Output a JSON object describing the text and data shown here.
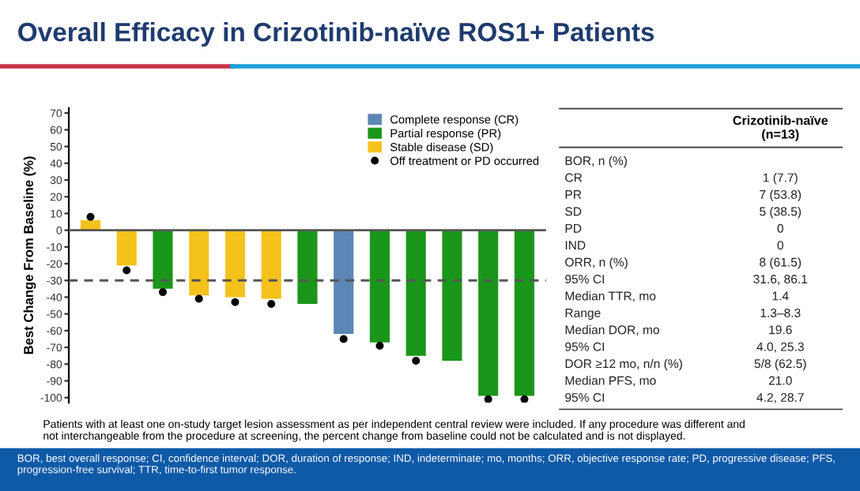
{
  "chart_data": [
    {
      "type": "bar",
      "title": "Overall Efficacy in Crizotinib-naïve ROS1+ Patients",
      "ylabel": "Best Change From Baseline (%)",
      "categories": [
        null,
        null,
        null,
        null,
        null,
        null,
        null,
        null,
        null,
        null,
        null,
        null,
        null
      ],
      "series": [
        {
          "name": "Complete response (CR)",
          "color": "#5b86b5",
          "values": [
            null,
            null,
            null,
            null,
            null,
            null,
            null,
            -62,
            null,
            null,
            null,
            null,
            null
          ]
        },
        {
          "name": "Partial response (PR)",
          "color": "#1a961a",
          "values": [
            null,
            null,
            -35,
            null,
            null,
            null,
            -44,
            null,
            -67,
            -75,
            -78,
            -99,
            -99
          ]
        },
        {
          "name": "Stable disease (SD)",
          "color": "#f5c21b",
          "values": [
            6,
            -21,
            null,
            -39,
            -40,
            -41,
            null,
            null,
            null,
            null,
            null,
            null,
            null
          ]
        },
        {
          "name": "Off treatment or PD occurred",
          "type": "scatter",
          "color": "#000000",
          "marker": "circle",
          "values": [
            8,
            -24,
            -37,
            -41,
            -43,
            -44,
            null,
            -65,
            -69,
            -78,
            null,
            -101,
            -101
          ]
        }
      ],
      "ylim": [
        -103,
        73
      ],
      "yticks": [
        70,
        60,
        50,
        40,
        30,
        20,
        10,
        0,
        -10,
        -20,
        -30,
        -40,
        -50,
        -60,
        -70,
        -80,
        -90,
        -100
      ],
      "ref_lines": [
        {
          "axis": "y",
          "value": 0,
          "color": "#555555",
          "line_style": "solid"
        },
        {
          "axis": "y",
          "value": -30,
          "color": "#555555",
          "line_style": "dashed"
        }
      ],
      "legend": "top right",
      "grid": false,
      "annotations": [
        "Patients with at least one on-study target lesion assessment as per independent central review were included. If any procedure was different and not interchangeable from the procedure at screening, the percent change from baseline could not be calculated and is not displayed.",
        "BOR, best overall response; CI, confidence interval; DOR, duration of response; IND, indeterminate; mo, months; ORR, objective response rate; PD, progressive disease; PFS, progression-free survival; TTR, time-to-first tumor response."
      ]
    },
    {
      "type": "other",
      "title": "Crizotinib-naïve\n(n=13)",
      "categories": [
        "BOR, n (%)",
        "CR",
        "PR",
        "SD",
        "PD",
        "IND",
        "ORR, n (%)",
        "95% CI",
        "Median TTR, mo",
        "Range",
        "Median DOR, mo",
        "95% CI",
        "DOR ≥12 mo, n/n (%)",
        "Median PFS, mo",
        "95% CI"
      ],
      "value_labels": [
        null,
        "1 (7.7)",
        "7 (53.8)",
        "5 (38.5)",
        "0",
        "0",
        "8 (61.5)",
        "31.6, 86.1",
        "1.4",
        "1.3–8.3",
        "19.6",
        "4.0, 25.3",
        "5/8 (62.5)",
        "21.0",
        "4.2, 28.7"
      ]
    }
  ]
}
